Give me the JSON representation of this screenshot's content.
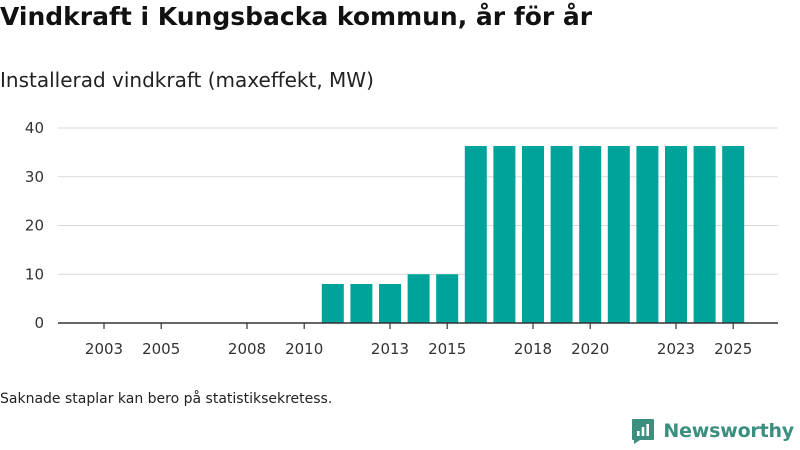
{
  "colors": {
    "bar": "#00a39a",
    "grid": "#d9d9d9",
    "axis": "#333333",
    "brand": "#3a8f7e"
  },
  "title": "Vindkraft i Kungsbacka kommun, år för år",
  "subtitle": "Installerad vindkraft (maxeffekt, MW)",
  "footnote": "Saknade staplar kan bero på statistiksekretess.",
  "brand": {
    "name": "Newsworthy",
    "icon": "newsworthy-logo-icon"
  },
  "chart_data": {
    "type": "bar",
    "title": "Vindkraft i Kungsbacka kommun, år för år",
    "ylabel": "Installerad vindkraft (maxeffekt, MW)",
    "xlabel": "",
    "ylim": [
      0,
      40
    ],
    "yticks": [
      0,
      10,
      20,
      30,
      40
    ],
    "xticks": [
      "2003",
      "2005",
      "2008",
      "2010",
      "2013",
      "2015",
      "2018",
      "2020",
      "2023",
      "2025"
    ],
    "grid": true,
    "series": [
      {
        "name": "Installerad vindkraft (MW)",
        "x": [
          2003,
          2004,
          2005,
          2006,
          2007,
          2008,
          2009,
          2010,
          2011,
          2012,
          2013,
          2014,
          2015,
          2016,
          2017,
          2018,
          2019,
          2020,
          2021,
          2022,
          2023,
          2024,
          2025
        ],
        "values": [
          0,
          0,
          0,
          0,
          0,
          0,
          0,
          0,
          8,
          8,
          8,
          10,
          10,
          36.3,
          36.3,
          36.3,
          36.3,
          36.3,
          36.3,
          36.3,
          36.3,
          36.3,
          36.3
        ]
      }
    ]
  }
}
